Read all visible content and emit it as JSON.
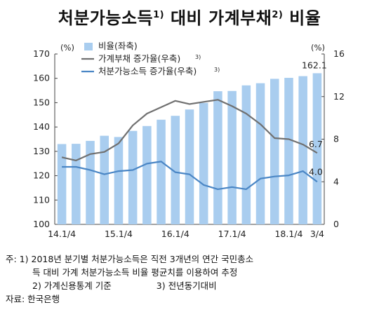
{
  "chart_data": {
    "type": "bar+line",
    "title": "처분가능소득",
    "title_sup1": "1)",
    "title_mid": " 대비 가계부채",
    "title_sup2": "2)",
    "title_end": " 비율",
    "left_unit": "(%)",
    "right_unit": "(%)",
    "left_axis": {
      "min": 100,
      "max": 170,
      "ticks": [
        100,
        110,
        120,
        130,
        140,
        150,
        160,
        170
      ]
    },
    "right_axis": {
      "min": 0,
      "max": 16,
      "ticks": [
        0,
        4,
        8,
        12,
        16
      ]
    },
    "x_labels": [
      "14.1/4",
      "15.1/4",
      "16.1/4",
      "17.1/4",
      "18.1/4",
      "3/4"
    ],
    "categories": [
      "14.1/4",
      "14.2/4",
      "14.3/4",
      "14.4/4",
      "15.1/4",
      "15.2/4",
      "15.3/4",
      "15.4/4",
      "16.1/4",
      "16.2/4",
      "16.3/4",
      "16.4/4",
      "17.1/4",
      "17.2/4",
      "17.3/4",
      "17.4/4",
      "18.1/4",
      "18.2/4",
      "18.3/4"
    ],
    "legend": [
      {
        "label": "비율(좌축)",
        "sup": ""
      },
      {
        "label": "가계부채 증가율(우축)",
        "sup": "3)"
      },
      {
        "label": "처분가능소득 증가율(우축)",
        "sup": "3)"
      }
    ],
    "series": [
      {
        "name": "비율(좌축)",
        "kind": "bar",
        "axis": "left",
        "color": "#a9cdef",
        "values": [
          133.0,
          133.1,
          134.3,
          136.4,
          135.9,
          138.4,
          140.4,
          143.0,
          144.6,
          147.2,
          149.9,
          154.7,
          154.8,
          157.1,
          158.0,
          159.8,
          160.2,
          160.9,
          162.1
        ]
      },
      {
        "name": "가계부채 증가율(우축)",
        "kind": "line",
        "axis": "right",
        "color": "#707070",
        "values": [
          6.3,
          6.0,
          6.6,
          6.8,
          7.6,
          9.3,
          10.4,
          11.0,
          11.6,
          11.3,
          11.5,
          11.7,
          11.1,
          10.4,
          9.4,
          8.1,
          8.0,
          7.5,
          6.7
        ]
      },
      {
        "name": "처분가능소득 증가율(우축)",
        "kind": "line",
        "axis": "right",
        "color": "#4a86c5",
        "values": [
          5.4,
          5.4,
          5.1,
          4.7,
          5.0,
          5.1,
          5.7,
          5.9,
          4.9,
          4.7,
          3.7,
          3.3,
          3.5,
          3.3,
          4.3,
          4.5,
          4.6,
          5.0,
          4.0
        ]
      }
    ],
    "annotations": [
      {
        "text": "162.1",
        "series": "비율(좌축)",
        "index": 18
      },
      {
        "text": "6.7",
        "series": "가계부채 증가율(우축)",
        "index": 18
      },
      {
        "text": "4.0",
        "series": "처분가능소득 증가율(우축)",
        "index": 18
      }
    ]
  },
  "notes": {
    "line1": "주: 1) 2018년 분기별 처분가능소득은 직전 3개년의 연간 국민총소",
    "line2": "득 대비 가계 처분가능소득 비율 평균치를 이용하여 추정",
    "line3a": "2) 가계신용통계 기준",
    "line3b": "3) 전년동기대비",
    "source": "자료: 한국은행"
  }
}
